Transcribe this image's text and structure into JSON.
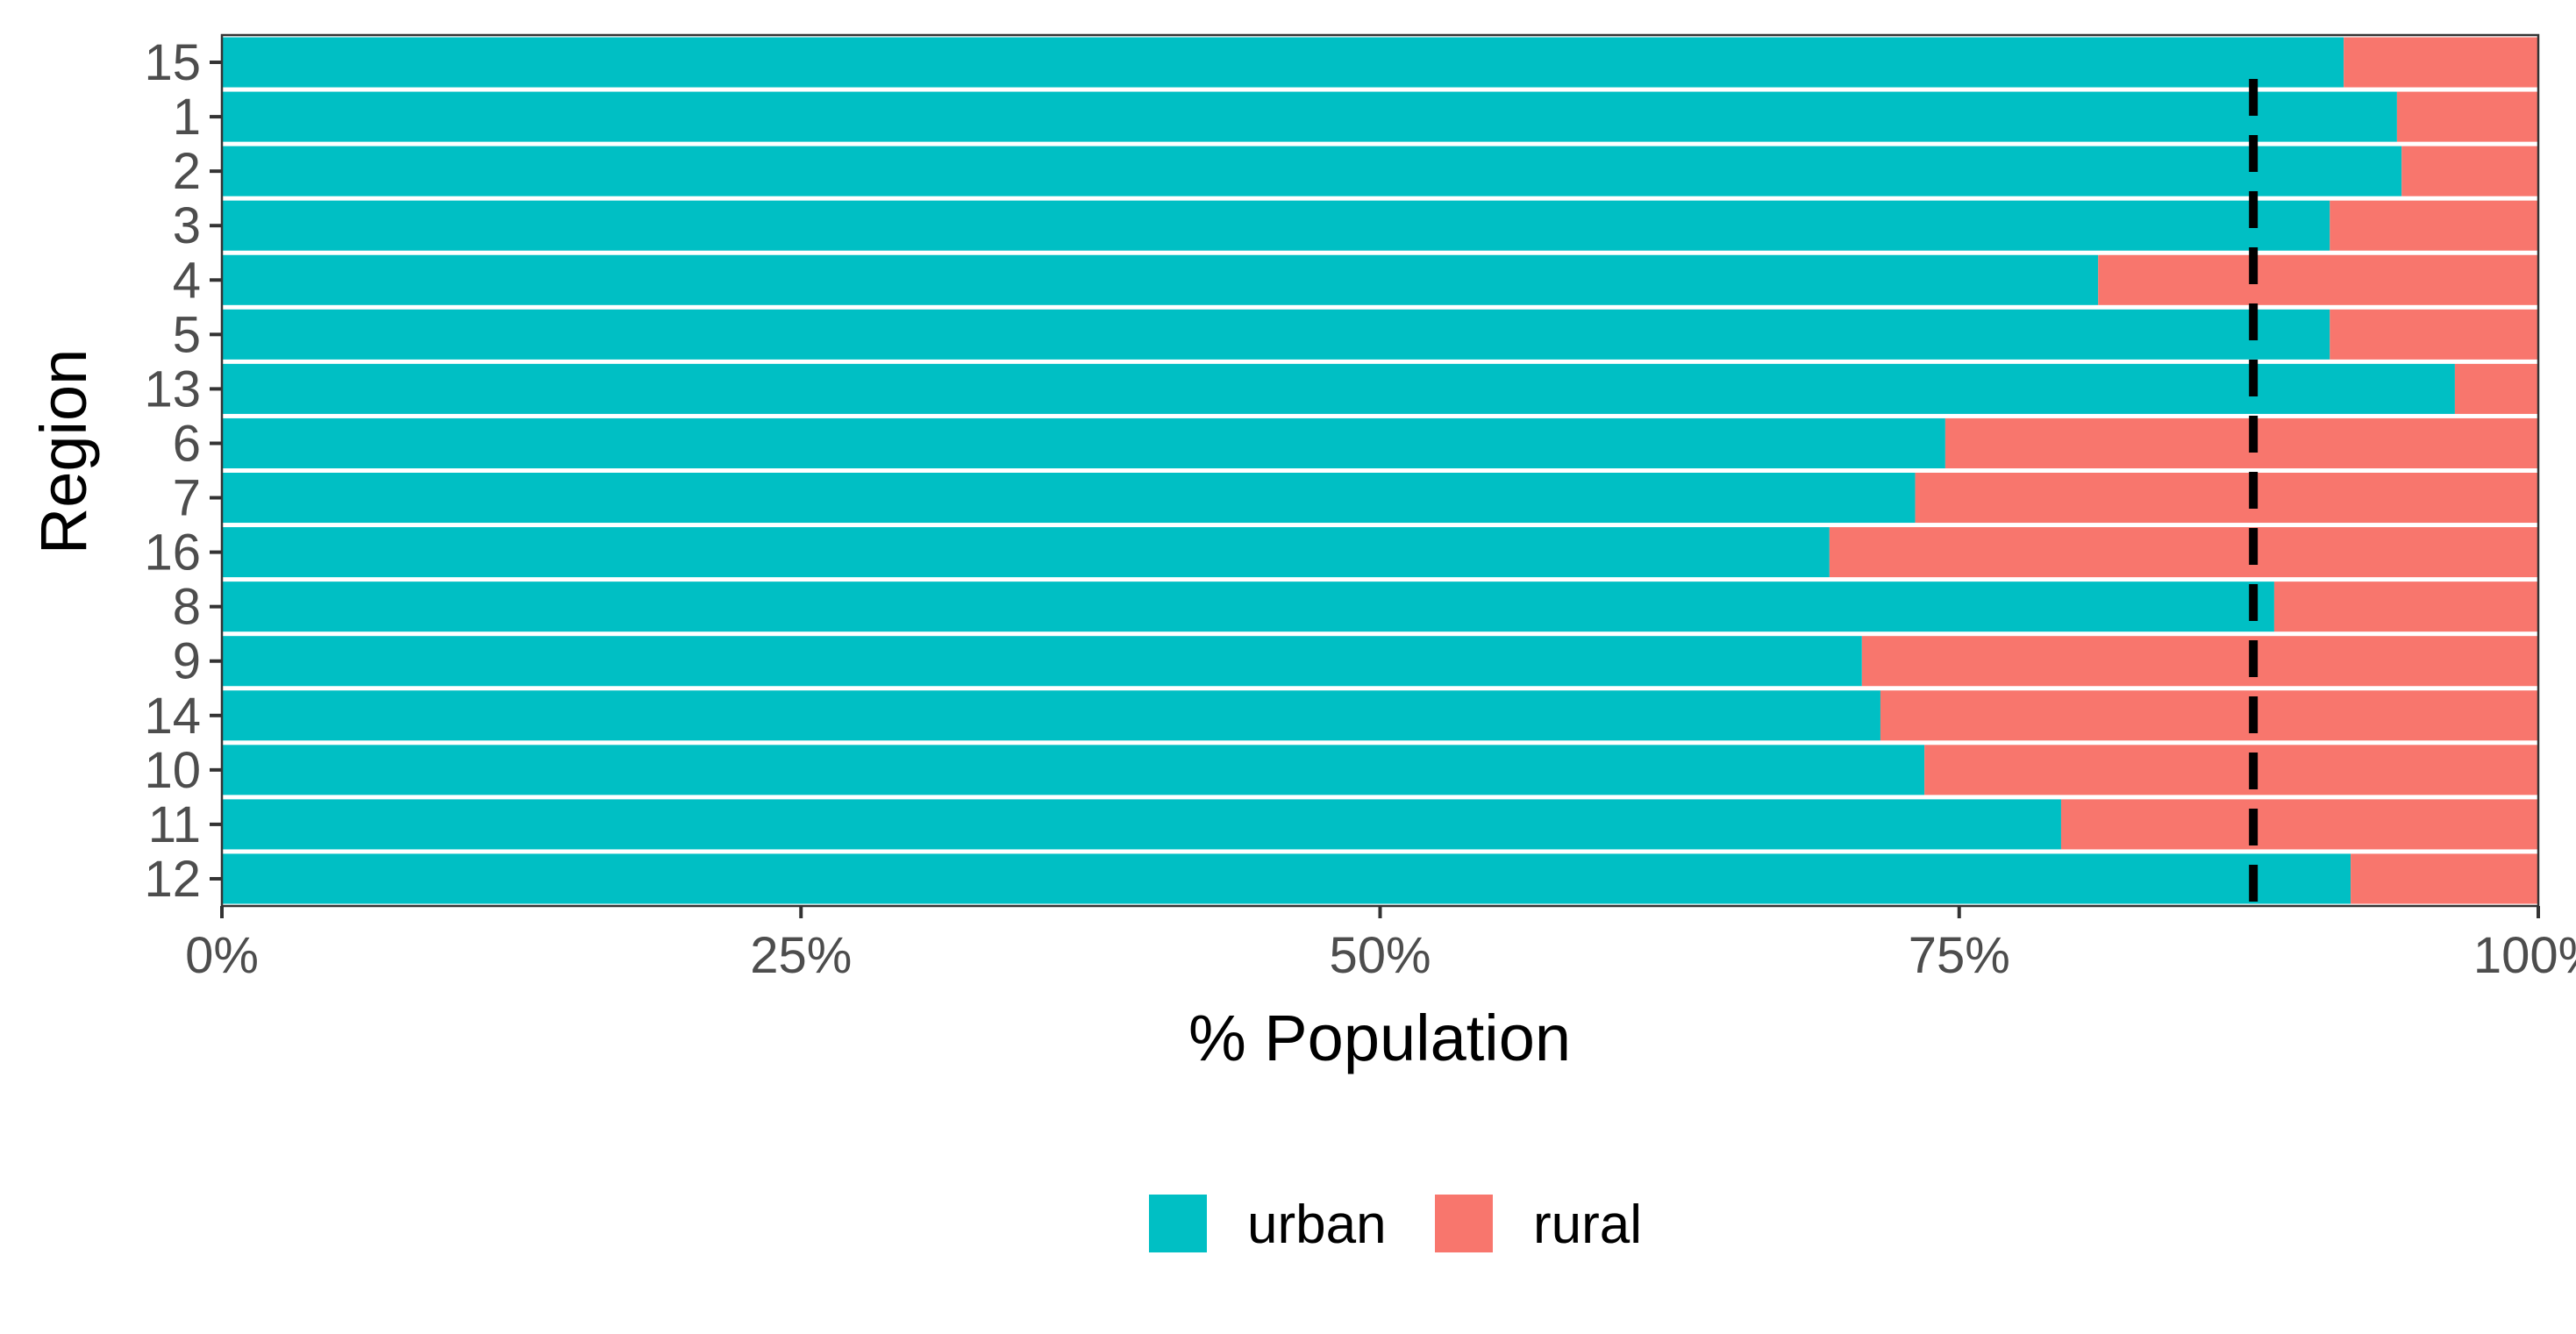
{
  "chart_data": {
    "type": "bar",
    "orientation": "horizontal",
    "stacked": true,
    "title": "",
    "xlabel": "% Population",
    "ylabel": "Region",
    "xlim": [
      0,
      100
    ],
    "x_ticks": [
      "0%",
      "25%",
      "50%",
      "75%",
      "100%"
    ],
    "categories": [
      "15",
      "1",
      "2",
      "3",
      "4",
      "5",
      "13",
      "6",
      "7",
      "16",
      "8",
      "9",
      "14",
      "10",
      "11",
      "12"
    ],
    "series": [
      {
        "name": "urban",
        "color": "#00BFC4",
        "values": [
          91.6,
          93.9,
          94.1,
          91.0,
          81.0,
          91.0,
          96.4,
          74.4,
          73.1,
          69.4,
          88.6,
          70.8,
          71.6,
          73.5,
          79.4,
          91.9
        ]
      },
      {
        "name": "rural",
        "color": "#F8766D",
        "values": [
          8.4,
          6.1,
          5.9,
          9.0,
          19.0,
          9.0,
          3.6,
          25.6,
          26.9,
          30.6,
          11.4,
          29.2,
          28.4,
          26.5,
          20.6,
          8.1
        ]
      }
    ],
    "reference_line": {
      "x": 87.7,
      "style": "dashed",
      "color": "#000000"
    },
    "legend": {
      "position": "bottom",
      "items": [
        "urban",
        "rural"
      ]
    },
    "grid": false
  }
}
